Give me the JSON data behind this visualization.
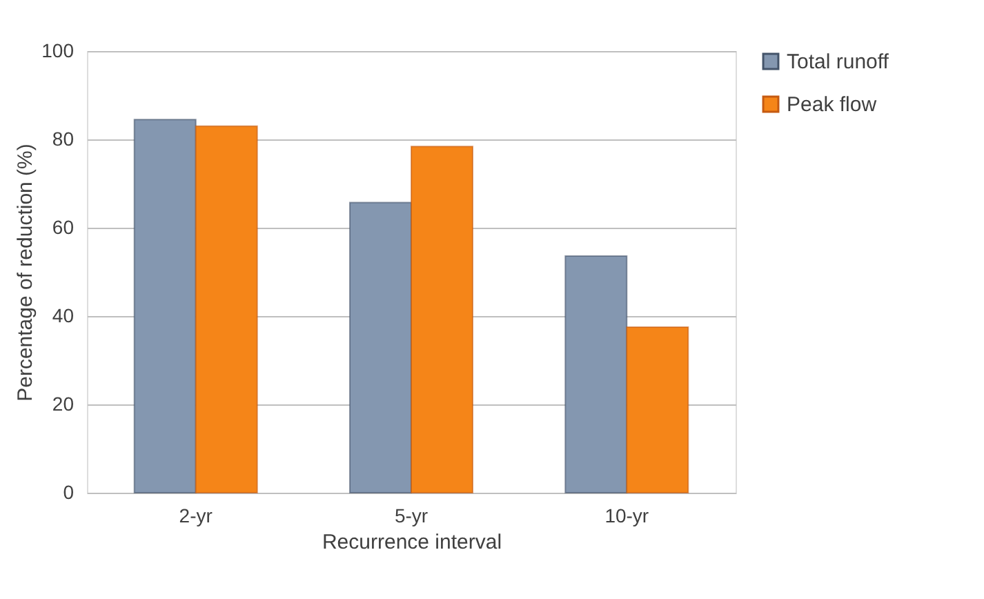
{
  "chart_data": {
    "type": "bar",
    "xlabel": "Recurrence interval",
    "ylabel": "Percentage of reduction (%)",
    "categories": [
      "2-yr",
      "5-yr",
      "10-yr"
    ],
    "series": [
      {
        "name": "Total runoff",
        "color": "#8497b0",
        "values": [
          84.5,
          65.7,
          53.6
        ]
      },
      {
        "name": "Peak flow",
        "color": "#f58518",
        "values": [
          83.0,
          78.4,
          37.5
        ]
      }
    ],
    "ylim": [
      0,
      100
    ],
    "yticks": [
      0,
      20,
      40,
      60,
      80,
      100
    ],
    "grid": "y",
    "legend": "right"
  }
}
